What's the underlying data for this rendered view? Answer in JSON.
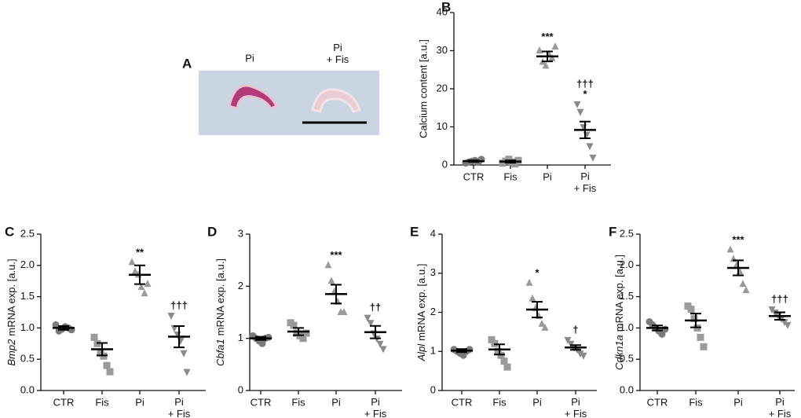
{
  "panel_a": {
    "label": "A",
    "captions": [
      "Pi",
      "Pi\n+ Fis"
    ]
  },
  "chart_data": [
    {
      "panel": "B",
      "type": "dot",
      "ylabel": "Calcium content [a.u.]",
      "ylim": [
        0,
        40
      ],
      "yticks": [
        0,
        10,
        20,
        30,
        40
      ],
      "categories": [
        "CTR",
        "Fis",
        "Pi",
        "Pi\n+ Fis"
      ],
      "groups": [
        {
          "marker": "circle",
          "color": "#7a7a7a",
          "points": [
            0.5,
            0.8,
            1,
            1.2,
            0.7,
            1.5
          ],
          "mean": 1,
          "sem": 0.2,
          "annotations": []
        },
        {
          "marker": "square",
          "color": "#9a9a9a",
          "points": [
            0.5,
            1,
            1.5,
            0.8,
            0.3,
            1.2
          ],
          "mean": 0.9,
          "sem": 0.3,
          "annotations": []
        },
        {
          "marker": "triangle-up",
          "color": "#9a9a9a",
          "points": [
            30,
            27,
            26,
            29,
            28,
            31
          ],
          "mean": 28.5,
          "sem": 1.3,
          "annotations": [
            "***"
          ]
        },
        {
          "marker": "triangle-down",
          "color": "#8a8a8a",
          "points": [
            16,
            14,
            10,
            8,
            5,
            2
          ],
          "mean": 9.2,
          "sem": 2.2,
          "annotations": [
            "†††",
            "*"
          ]
        }
      ]
    },
    {
      "panel": "C",
      "type": "dot",
      "ylabel": {
        "gene": "Bmp2",
        "text": "mRNA exp. [a.u.]"
      },
      "ylim": [
        0,
        2.5
      ],
      "yticks": [
        {
          "value": 0,
          "label": "0.0"
        },
        0.5,
        {
          "value": 1,
          "label": "1.0"
        },
        1.5,
        {
          "value": 2,
          "label": "2.0"
        },
        2.5
      ],
      "categories": [
        "CTR",
        "Fis",
        "Pi",
        "Pi\n+ Fis"
      ],
      "groups": [
        {
          "marker": "circle",
          "color": "#7a7a7a",
          "points": [
            1.05,
            0.95,
            0.98,
            1.02,
            1.0,
            0.97
          ],
          "mean": 1.0,
          "sem": 0.03,
          "annotations": []
        },
        {
          "marker": "square",
          "color": "#9a9a9a",
          "points": [
            0.85,
            0.75,
            0.6,
            0.55,
            0.4,
            0.3
          ],
          "mean": 0.66,
          "sem": 0.1,
          "annotations": []
        },
        {
          "marker": "triangle-up",
          "color": "#9a9a9a",
          "points": [
            2.05,
            1.9,
            1.85,
            1.65,
            1.55,
            1.7
          ],
          "mean": 1.85,
          "sem": 0.15,
          "annotations": [
            "**"
          ]
        },
        {
          "marker": "triangle-down",
          "color": "#8a8a8a",
          "points": [
            1.2,
            1.0,
            0.9,
            0.8,
            0.6,
            0.3
          ],
          "mean": 0.86,
          "sem": 0.17,
          "annotations": [
            "†††"
          ]
        }
      ]
    },
    {
      "panel": "D",
      "type": "dot",
      "ylabel": {
        "gene": "Cbfa1",
        "text": "mRNA exp. [a.u.]"
      },
      "ylim": [
        0,
        3
      ],
      "yticks": [
        0,
        1,
        2,
        3
      ],
      "categories": [
        "CTR",
        "Fis",
        "Pi",
        "Pi\n+ Fis"
      ],
      "groups": [
        {
          "marker": "circle",
          "color": "#7a7a7a",
          "points": [
            1.05,
            1.0,
            0.95,
            0.9,
            1.0,
            1.02
          ],
          "mean": 1.0,
          "sem": 0.03,
          "annotations": []
        },
        {
          "marker": "square",
          "color": "#9a9a9a",
          "points": [
            1.3,
            1.25,
            1.1,
            1.05,
            1.0,
            1.1
          ],
          "mean": 1.13,
          "sem": 0.07,
          "annotations": []
        },
        {
          "marker": "triangle-up",
          "color": "#9a9a9a",
          "points": [
            2.4,
            2.1,
            1.9,
            1.7,
            1.5,
            1.5
          ],
          "mean": 1.85,
          "sem": 0.18,
          "annotations": [
            "***"
          ]
        },
        {
          "marker": "triangle-down",
          "color": "#8a8a8a",
          "points": [
            1.4,
            1.3,
            1.1,
            1.0,
            0.9,
            0.8
          ],
          "mean": 1.12,
          "sem": 0.12,
          "annotations": [
            "††"
          ]
        }
      ]
    },
    {
      "panel": "E",
      "type": "dot",
      "ylabel": {
        "gene": "Alpl",
        "text": "mRNA exp. [a.u.]"
      },
      "ylim": [
        0,
        4
      ],
      "yticks": [
        0,
        1,
        2,
        3,
        4
      ],
      "categories": [
        "CTR",
        "Fis",
        "Pi",
        "Pi\n+ Fis"
      ],
      "groups": [
        {
          "marker": "circle",
          "color": "#7a7a7a",
          "points": [
            1.05,
            1,
            0.95,
            0.9,
            1.0,
            1.05
          ],
          "mean": 1.02,
          "sem": 0.04,
          "annotations": []
        },
        {
          "marker": "square",
          "color": "#9a9a9a",
          "points": [
            1.3,
            1.2,
            1.0,
            0.9,
            0.75,
            0.6
          ],
          "mean": 1.05,
          "sem": 0.13,
          "annotations": []
        },
        {
          "marker": "triangle-up",
          "color": "#9a9a9a",
          "points": [
            2.75,
            2.35,
            2.1,
            1.9,
            1.7,
            1.6
          ],
          "mean": 2.07,
          "sem": 0.2,
          "annotations": [
            "*"
          ]
        },
        {
          "marker": "triangle-down",
          "color": "#8a8a8a",
          "points": [
            1.3,
            1.2,
            1.1,
            1.05,
            0.95,
            0.9
          ],
          "mean": 1.1,
          "sem": 0.06,
          "annotations": [
            "†"
          ]
        }
      ]
    },
    {
      "panel": "F",
      "type": "dot",
      "ylabel": {
        "gene": "Cdkn1a",
        "text": "mRNA exp. [a.u.]"
      },
      "ylim": [
        0,
        2.5
      ],
      "yticks": [
        {
          "value": 0,
          "label": "0.0"
        },
        0.5,
        {
          "value": 1,
          "label": "1.0"
        },
        1.5,
        {
          "value": 2,
          "label": "2.0"
        },
        2.5
      ],
      "categories": [
        "CTR",
        "Fis",
        "Pi",
        "Pi\n+ Fis"
      ],
      "groups": [
        {
          "marker": "circle",
          "color": "#7a7a7a",
          "points": [
            1.1,
            1.05,
            1.0,
            0.95,
            0.9,
            0.98
          ],
          "mean": 1.0,
          "sem": 0.04,
          "annotations": []
        },
        {
          "marker": "square",
          "color": "#9a9a9a",
          "points": [
            1.35,
            1.3,
            1.15,
            1.0,
            0.85,
            0.7
          ],
          "mean": 1.12,
          "sem": 0.11,
          "annotations": []
        },
        {
          "marker": "triangle-up",
          "color": "#9a9a9a",
          "points": [
            2.25,
            2.1,
            2.0,
            1.9,
            1.7,
            1.6
          ],
          "mean": 1.96,
          "sem": 0.12,
          "annotations": [
            "***"
          ]
        },
        {
          "marker": "triangle-down",
          "color": "#8a8a8a",
          "points": [
            1.3,
            1.25,
            1.2,
            1.15,
            1.1,
            1.05
          ],
          "mean": 1.19,
          "sem": 0.06,
          "annotations": [
            "†††"
          ]
        }
      ]
    }
  ]
}
